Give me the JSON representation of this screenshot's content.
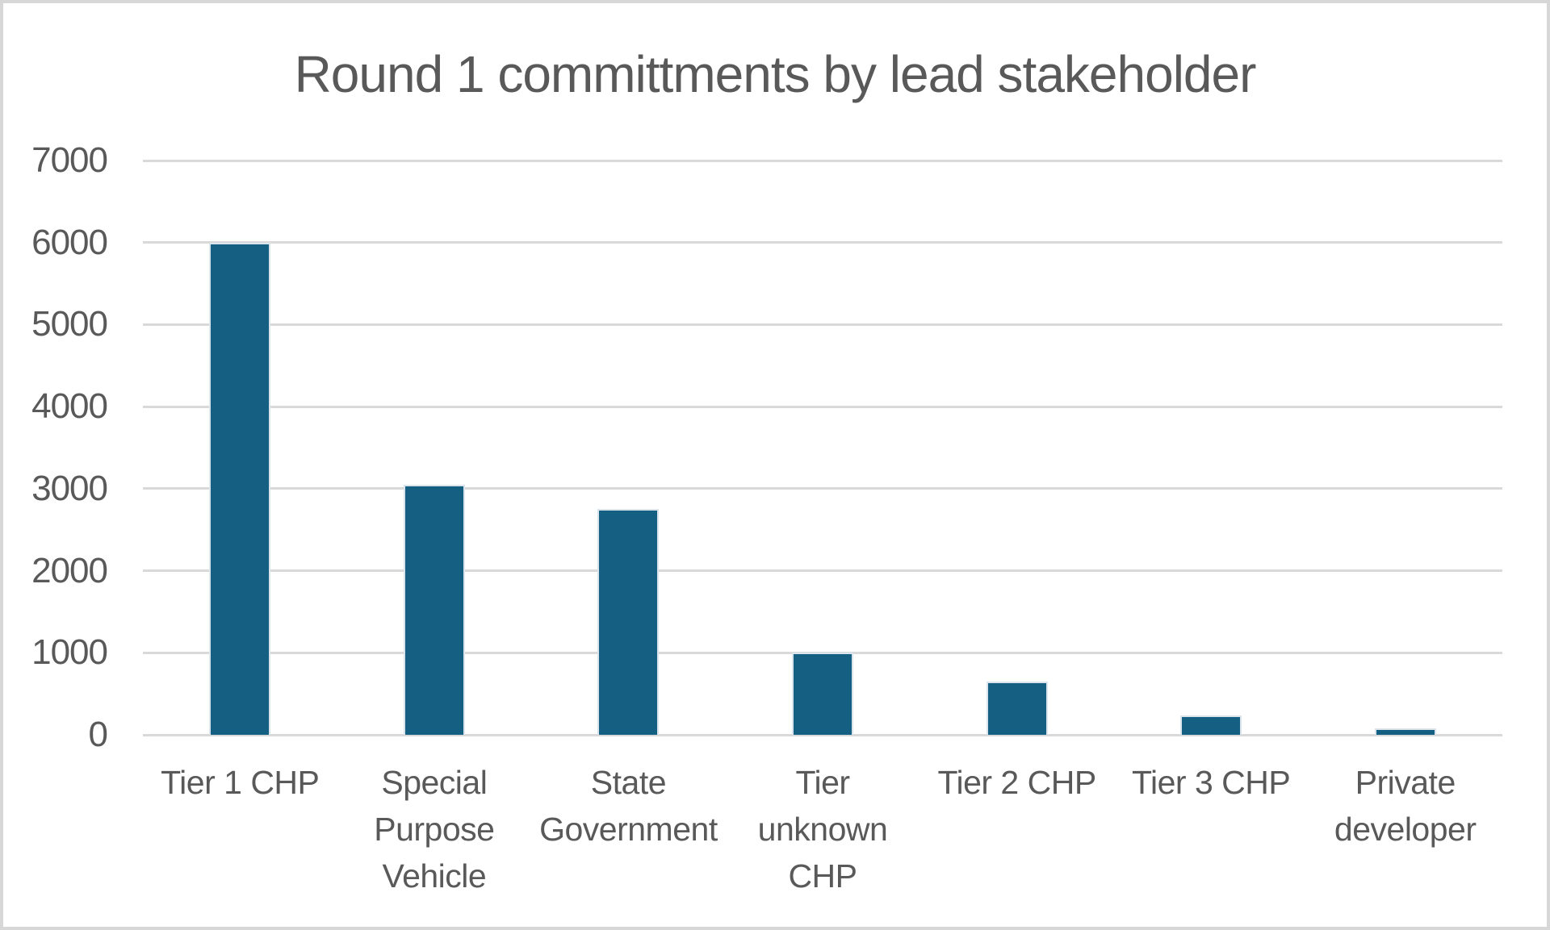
{
  "chart_data": {
    "type": "bar",
    "title": "Round 1 committments by lead stakeholder",
    "categories": [
      "Tier 1 CHP",
      "Special Purpose Vehicle",
      "State Government",
      "Tier unknown CHP",
      "Tier 2 CHP",
      "Tier 3 CHP",
      "Private developer"
    ],
    "category_lines": [
      [
        "Tier 1 CHP"
      ],
      [
        "Special",
        "Purpose",
        "Vehicle"
      ],
      [
        "State",
        "Government"
      ],
      [
        "Tier",
        "unknown",
        "CHP"
      ],
      [
        "Tier 2 CHP"
      ],
      [
        "Tier 3 CHP"
      ],
      [
        "Private",
        "developer"
      ]
    ],
    "values": [
      6000,
      3050,
      2750,
      1000,
      650,
      240,
      80
    ],
    "xlabel": "",
    "ylabel": "",
    "ylim": [
      0,
      7000
    ],
    "yticks": [
      0,
      1000,
      2000,
      3000,
      4000,
      5000,
      6000,
      7000
    ],
    "grid": true,
    "legend": false,
    "colors": {
      "bar": "#156082",
      "bar_edge": "#d9e4ec",
      "gridline": "#d9d9d9",
      "text": "#595959",
      "frame_border": "#d7d7d7"
    }
  }
}
